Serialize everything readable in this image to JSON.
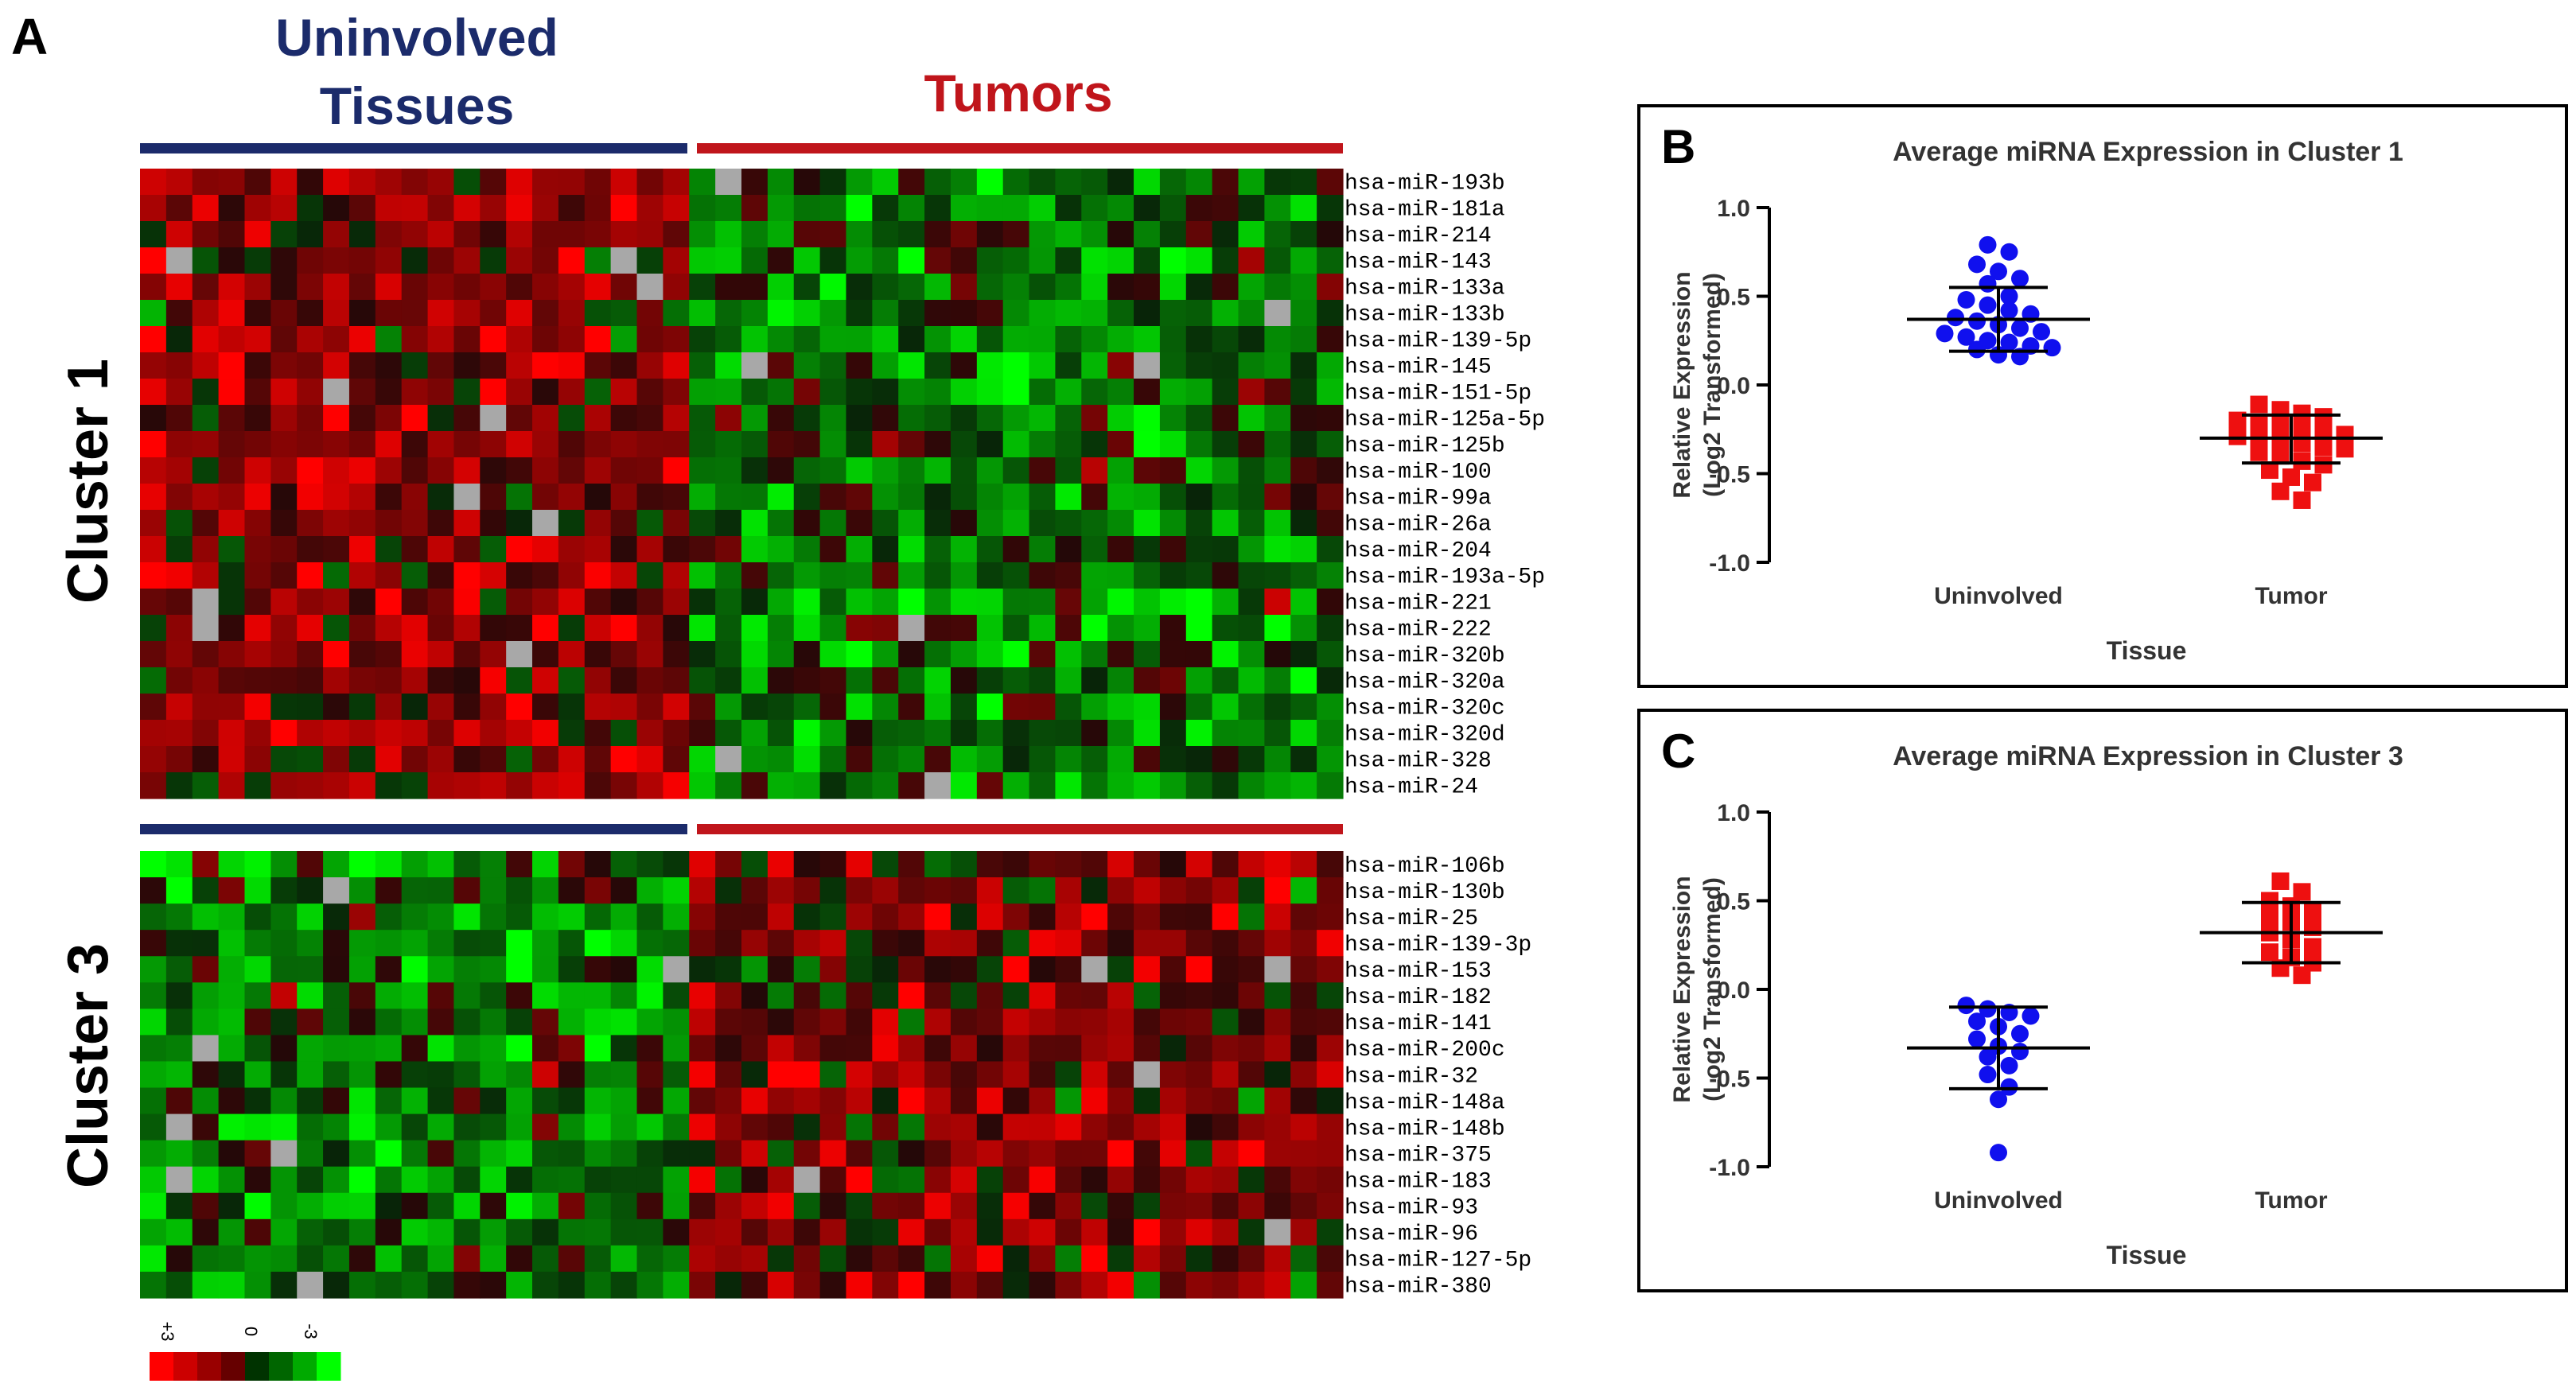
{
  "panel_letters": {
    "a": "A",
    "b": "B",
    "c": "C"
  },
  "group_labels": {
    "uninvolved_line1": "Uninvolved",
    "uninvolved_line2": "Tissues",
    "tumors": "Tumors"
  },
  "cluster_labels": {
    "cluster1": "Cluster 1",
    "cluster3": "Cluster 3"
  },
  "colors": {
    "uninvolved": "#1b2b6b",
    "tumor": "#c0151b",
    "blue_point": "#1010ee",
    "red_point": "#ee1010",
    "missing": "#a8a8a8"
  },
  "color_key": {
    "labels": [
      "+3",
      "0",
      "-3"
    ],
    "colors": [
      "#ff0000",
      "#cc0000",
      "#990000",
      "#660000",
      "#003300",
      "#006600",
      "#00aa00",
      "#00ff00"
    ]
  },
  "chart_data": [
    {
      "type": "heatmap",
      "title": "Cluster 1",
      "columns": {
        "uninvolved": 21,
        "tumor": 25
      },
      "rows": [
        "hsa-miR-193b",
        "hsa-miR-181a",
        "hsa-miR-214",
        "hsa-miR-143",
        "hsa-miR-133a",
        "hsa-miR-133b",
        "hsa-miR-139-5p",
        "hsa-miR-145",
        "hsa-miR-151-5p",
        "hsa-miR-125a-5p",
        "hsa-miR-125b",
        "hsa-miR-100",
        "hsa-miR-99a",
        "hsa-miR-26a",
        "hsa-miR-204",
        "hsa-miR-193a-5p",
        "hsa-miR-221",
        "hsa-miR-222",
        "hsa-miR-320b",
        "hsa-miR-320a",
        "hsa-miR-320c",
        "hsa-miR-320d",
        "hsa-miR-328",
        "hsa-miR-24"
      ],
      "trend": {
        "uninvolved": 0.38,
        "tumor": -0.3
      },
      "scale": [
        -3,
        3
      ]
    },
    {
      "type": "heatmap",
      "title": "Cluster 3",
      "columns": {
        "uninvolved": 21,
        "tumor": 25
      },
      "rows": [
        "hsa-miR-106b",
        "hsa-miR-130b",
        "hsa-miR-25",
        "hsa-miR-139-3p",
        "hsa-miR-153",
        "hsa-miR-182",
        "hsa-miR-141",
        "hsa-miR-200c",
        "hsa-miR-32",
        "hsa-miR-148a",
        "hsa-miR-148b",
        "hsa-miR-375",
        "hsa-miR-183",
        "hsa-miR-93",
        "hsa-miR-96",
        "hsa-miR-127-5p",
        "hsa-miR-380"
      ],
      "trend": {
        "uninvolved": -0.33,
        "tumor": 0.32
      },
      "scale": [
        -3,
        3
      ]
    },
    {
      "type": "scatter",
      "title": "Average miRNA  Expression in Cluster 1",
      "xlabel": "Tissue",
      "ylabel_line1": "Relative  Expression",
      "ylabel_line2": "(Log2 Transformed)",
      "ylim": [
        -1.0,
        1.0
      ],
      "yticks": [
        "1.0",
        "0.5",
        "0.0",
        "-0.5",
        "-1.0"
      ],
      "yticks_num": [
        1.0,
        0.5,
        0.0,
        -0.5,
        -1.0
      ],
      "categories": [
        "Uninvolved",
        "Tumor"
      ],
      "series": [
        {
          "name": "Uninvolved",
          "mean": 0.37,
          "sd_upper": 0.55,
          "sd_lower": 0.19,
          "values": [
            0.79,
            0.75,
            0.68,
            0.64,
            0.6,
            0.57,
            0.5,
            0.48,
            0.45,
            0.42,
            0.4,
            0.38,
            0.36,
            0.34,
            0.32,
            0.3,
            0.29,
            0.27,
            0.25,
            0.24,
            0.22,
            0.21,
            0.2,
            0.17,
            0.16
          ]
        },
        {
          "name": "Tumor",
          "mean": -0.3,
          "sd_upper": -0.17,
          "sd_lower": -0.44,
          "values": [
            -0.11,
            -0.14,
            -0.16,
            -0.18,
            -0.2,
            -0.22,
            -0.23,
            -0.25,
            -0.26,
            -0.28,
            -0.29,
            -0.3,
            -0.32,
            -0.33,
            -0.35,
            -0.36,
            -0.38,
            -0.4,
            -0.43,
            -0.45,
            -0.48,
            -0.52,
            -0.55,
            -0.6,
            -0.65
          ]
        }
      ]
    },
    {
      "type": "scatter",
      "title": "Average miRNA  Expression in Cluster 3",
      "xlabel": "Tissue",
      "ylabel_line1": "Relative  Expression",
      "ylabel_line2": "(Log2 Transformed)",
      "ylim": [
        -1.0,
        1.0
      ],
      "yticks": [
        "1.0",
        "0.5",
        "0.0",
        "-0.5",
        "-1.0"
      ],
      "yticks_num": [
        1.0,
        0.5,
        0.0,
        -0.5,
        -1.0
      ],
      "categories": [
        "Uninvolved",
        "Tumor"
      ],
      "series": [
        {
          "name": "Uninvolved",
          "mean": -0.33,
          "sd_upper": -0.1,
          "sd_lower": -0.56,
          "values": [
            -0.09,
            -0.11,
            -0.13,
            -0.15,
            -0.18,
            -0.21,
            -0.25,
            -0.28,
            -0.32,
            -0.35,
            -0.38,
            -0.43,
            -0.48,
            -0.55,
            -0.62,
            -0.92
          ]
        },
        {
          "name": "Tumor",
          "mean": 0.32,
          "sd_upper": 0.49,
          "sd_lower": 0.15,
          "values": [
            0.61,
            0.55,
            0.5,
            0.47,
            0.44,
            0.41,
            0.38,
            0.35,
            0.32,
            0.28,
            0.24,
            0.21,
            0.18,
            0.15,
            0.12,
            0.08
          ]
        }
      ]
    }
  ]
}
